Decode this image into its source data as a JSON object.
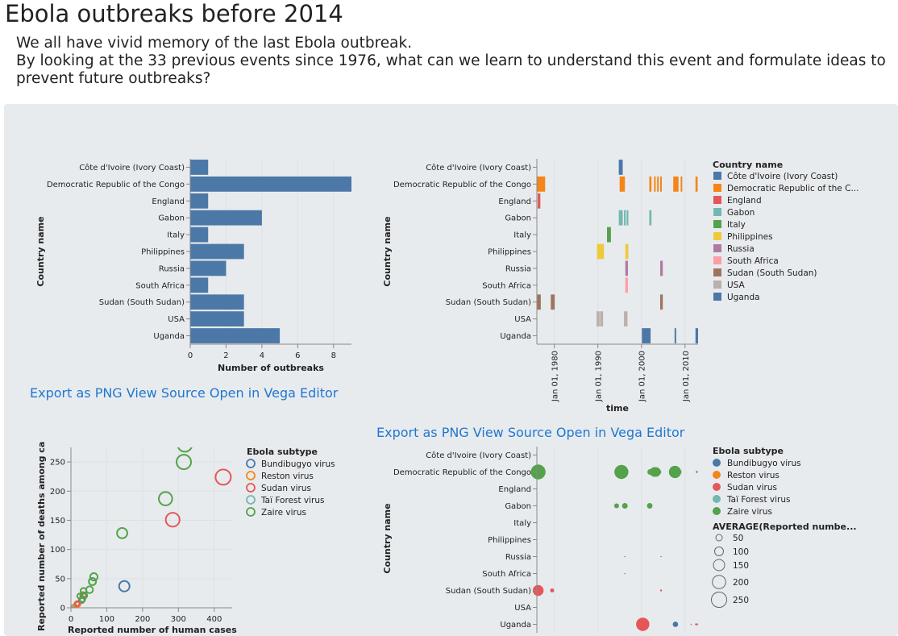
{
  "page": {
    "title": "Ebola outbreaks before 2014",
    "intro_line1": "We all have vivid memory of the last Ebola outbreak.",
    "intro_line2": "By looking at the 33 previous events since 1976, what can we learn to understand this event and formulate ideas to prevent future outbreaks?"
  },
  "actions": {
    "export_png": "Export as PNG",
    "view_source": "View Source",
    "open_editor": "Open in Vega Editor"
  },
  "countries": [
    "Côte d'Ivoire (Ivory Coast)",
    "Democratic Republic of the Congo",
    "England",
    "Gabon",
    "Italy",
    "Philippines",
    "Russia",
    "South Africa",
    "Sudan (South Sudan)",
    "USA",
    "Uganda"
  ],
  "country_colors": [
    "#4c78a8",
    "#f58518",
    "#e45756",
    "#72b7b2",
    "#54a24b",
    "#eeca3b",
    "#b279a2",
    "#ff9da6",
    "#9d755d",
    "#bab0ac",
    "#4c78a8"
  ],
  "subtype_colors": {
    "Bundibugyo virus": "#4c78a8",
    "Reston virus": "#f58518",
    "Sudan virus": "#e45756",
    "Taï Forest virus": "#72b7b2",
    "Zaire virus": "#54a24b"
  },
  "chart_data": [
    {
      "type": "bar",
      "orientation": "horizontal",
      "xlabel": "Number of outbreaks",
      "ylabel": "Country name",
      "xlim": [
        0,
        9
      ],
      "xticks": [
        0,
        2,
        4,
        6,
        8
      ],
      "categories": [
        "Côte d'Ivoire (Ivory Coast)",
        "Democratic Republic of the Congo",
        "England",
        "Gabon",
        "Italy",
        "Philippines",
        "Russia",
        "South Africa",
        "Sudan (South Sudan)",
        "USA",
        "Uganda"
      ],
      "values": [
        1,
        9,
        1,
        4,
        1,
        3,
        2,
        1,
        3,
        3,
        5
      ],
      "color": "#4c78a8"
    },
    {
      "type": "timeline",
      "xlabel": "time",
      "ylabel": "Country name",
      "xlim": [
        "1976-01-01",
        "2013-01-01"
      ],
      "xticks": [
        "Jan 01, 1980",
        "Jan 01, 1990",
        "Jan 01, 2000",
        "Jan 01, 2010"
      ],
      "legend_title": "Country name",
      "legend_labels": [
        "Côte d'Ivoire (Ivory Coast)",
        "Democratic Republic of the C...",
        "England",
        "Gabon",
        "Italy",
        "Philippines",
        "Russia",
        "South Africa",
        "Sudan (South Sudan)",
        "USA",
        "Uganda"
      ],
      "events": [
        {
          "country": 0,
          "start": 1994.8,
          "end": 1995.7
        },
        {
          "country": 1,
          "start": 1976.1,
          "end": 1977.9
        },
        {
          "country": 1,
          "start": 1995.0,
          "end": 1996.2
        },
        {
          "country": 1,
          "start": 2001.8,
          "end": 2002.3
        },
        {
          "country": 1,
          "start": 2002.9,
          "end": 2003.2
        },
        {
          "country": 1,
          "start": 2003.6,
          "end": 2003.9
        },
        {
          "country": 1,
          "start": 2004.3,
          "end": 2004.6
        },
        {
          "country": 1,
          "start": 2007.3,
          "end": 2008.5
        },
        {
          "country": 1,
          "start": 2009.0,
          "end": 2009.3
        },
        {
          "country": 1,
          "start": 2012.4,
          "end": 2012.9
        },
        {
          "country": 2,
          "start": 1976.2,
          "end": 1976.8
        },
        {
          "country": 3,
          "start": 1994.8,
          "end": 1995.7
        },
        {
          "country": 3,
          "start": 1996.0,
          "end": 1996.4
        },
        {
          "country": 3,
          "start": 1996.6,
          "end": 1997.0
        },
        {
          "country": 3,
          "start": 2001.8,
          "end": 2002.3
        },
        {
          "country": 4,
          "start": 1992.1,
          "end": 1993.0
        },
        {
          "country": 5,
          "start": 1989.8,
          "end": 1991.4
        },
        {
          "country": 5,
          "start": 1996.3,
          "end": 1997.0
        },
        {
          "country": 6,
          "start": 1996.3,
          "end": 1996.9
        },
        {
          "country": 6,
          "start": 2004.3,
          "end": 2004.9
        },
        {
          "country": 7,
          "start": 1996.3,
          "end": 1996.9
        },
        {
          "country": 8,
          "start": 1976.1,
          "end": 1976.9
        },
        {
          "country": 8,
          "start": 1979.2,
          "end": 1980.1
        },
        {
          "country": 8,
          "start": 2004.3,
          "end": 2004.9
        },
        {
          "country": 9,
          "start": 1989.7,
          "end": 1990.4
        },
        {
          "country": 9,
          "start": 1990.5,
          "end": 1991.2
        },
        {
          "country": 9,
          "start": 1996.0,
          "end": 1996.8
        },
        {
          "country": 10,
          "start": 2000.1,
          "end": 2002.1
        },
        {
          "country": 10,
          "start": 2007.6,
          "end": 2007.9
        },
        {
          "country": 10,
          "start": 2012.4,
          "end": 2013.0
        }
      ]
    },
    {
      "type": "scatter",
      "xlabel": "Reported number of human cases",
      "ylabel": "Reported number of deaths among ca",
      "xlim": [
        0,
        450
      ],
      "ylim": [
        0,
        275
      ],
      "xticks": [
        0,
        100,
        200,
        300,
        400
      ],
      "yticks": [
        0,
        50,
        100,
        150,
        200,
        250
      ],
      "legend_title": "Ebola subtype",
      "points": [
        {
          "x": 30,
          "y": 13,
          "subtype": "Bundibugyo virus"
        },
        {
          "x": 149,
          "y": 37,
          "subtype": "Bundibugyo virus"
        },
        {
          "x": 3,
          "y": 0,
          "subtype": "Reston virus"
        },
        {
          "x": 6,
          "y": 0,
          "subtype": "Reston virus"
        },
        {
          "x": 10,
          "y": 2,
          "subtype": "Reston virus"
        },
        {
          "x": 20,
          "y": 6,
          "subtype": "Reston virus"
        },
        {
          "x": 425,
          "y": 224,
          "subtype": "Sudan virus"
        },
        {
          "x": 284,
          "y": 151,
          "subtype": "Sudan virus"
        },
        {
          "x": 34,
          "y": 22,
          "subtype": "Sudan virus"
        },
        {
          "x": 17,
          "y": 7,
          "subtype": "Sudan virus"
        },
        {
          "x": 1,
          "y": 0,
          "subtype": "Taï Forest virus"
        },
        {
          "x": 318,
          "y": 280,
          "subtype": "Zaire virus"
        },
        {
          "x": 315,
          "y": 250,
          "subtype": "Zaire virus"
        },
        {
          "x": 264,
          "y": 187,
          "subtype": "Zaire virus"
        },
        {
          "x": 143,
          "y": 128,
          "subtype": "Zaire virus"
        },
        {
          "x": 60,
          "y": 45,
          "subtype": "Zaire virus"
        },
        {
          "x": 64,
          "y": 53,
          "subtype": "Zaire virus"
        },
        {
          "x": 52,
          "y": 31,
          "subtype": "Zaire virus"
        },
        {
          "x": 37,
          "y": 21,
          "subtype": "Zaire virus"
        },
        {
          "x": 35,
          "y": 29,
          "subtype": "Zaire virus"
        },
        {
          "x": 32,
          "y": 15,
          "subtype": "Zaire virus"
        },
        {
          "x": 25,
          "y": 20,
          "subtype": "Zaire virus"
        }
      ]
    },
    {
      "type": "scatter",
      "ylabel": "Country name",
      "xlim": [
        "1976-01-01",
        "2013-01-01"
      ],
      "legend_title": "Ebola subtype",
      "size_legend_title": "AVERAGE(Reported numbe...",
      "size_legend_values": [
        50,
        100,
        150,
        200,
        250
      ],
      "points": [
        {
          "country": 1,
          "year": 1976.3,
          "size": 280,
          "subtype": "Zaire virus"
        },
        {
          "country": 1,
          "year": 1995.4,
          "size": 250,
          "subtype": "Zaire virus"
        },
        {
          "country": 1,
          "year": 2002.0,
          "size": 40,
          "subtype": "Zaire virus"
        },
        {
          "country": 1,
          "year": 2003.0,
          "size": 120,
          "subtype": "Zaire virus"
        },
        {
          "country": 1,
          "year": 2003.3,
          "size": 120,
          "subtype": "Zaire virus"
        },
        {
          "country": 1,
          "year": 2003.9,
          "size": 40,
          "subtype": "Zaire virus"
        },
        {
          "country": 1,
          "year": 2007.7,
          "size": 190,
          "subtype": "Zaire virus"
        },
        {
          "country": 1,
          "year": 2008.9,
          "size": 10,
          "subtype": "Zaire virus"
        },
        {
          "country": 1,
          "year": 2012.7,
          "size": 5,
          "subtype": "Bundibugyo virus"
        },
        {
          "country": 3,
          "year": 1994.3,
          "size": 30,
          "subtype": "Zaire virus"
        },
        {
          "country": 3,
          "year": 1996.2,
          "size": 40,
          "subtype": "Zaire virus"
        },
        {
          "country": 3,
          "year": 2001.9,
          "size": 40,
          "subtype": "Zaire virus"
        },
        {
          "country": 6,
          "year": 1996.2,
          "size": 1,
          "subtype": "Zaire virus"
        },
        {
          "country": 6,
          "year": 2004.5,
          "size": 1,
          "subtype": "Zaire virus"
        },
        {
          "country": 7,
          "year": 1996.2,
          "size": 1,
          "subtype": "Zaire virus"
        },
        {
          "country": 8,
          "year": 1976.3,
          "size": 150,
          "subtype": "Sudan virus"
        },
        {
          "country": 8,
          "year": 1979.5,
          "size": 20,
          "subtype": "Sudan virus"
        },
        {
          "country": 8,
          "year": 2004.5,
          "size": 5,
          "subtype": "Sudan virus"
        },
        {
          "country": 10,
          "year": 2000.3,
          "size": 224,
          "subtype": "Sudan virus"
        },
        {
          "country": 10,
          "year": 2007.8,
          "size": 37,
          "subtype": "Bundibugyo virus"
        },
        {
          "country": 10,
          "year": 2011.4,
          "size": 1,
          "subtype": "Sudan virus"
        },
        {
          "country": 10,
          "year": 2012.5,
          "size": 4,
          "subtype": "Sudan virus"
        },
        {
          "country": 10,
          "year": 2012.8,
          "size": 4,
          "subtype": "Sudan virus"
        }
      ]
    }
  ]
}
